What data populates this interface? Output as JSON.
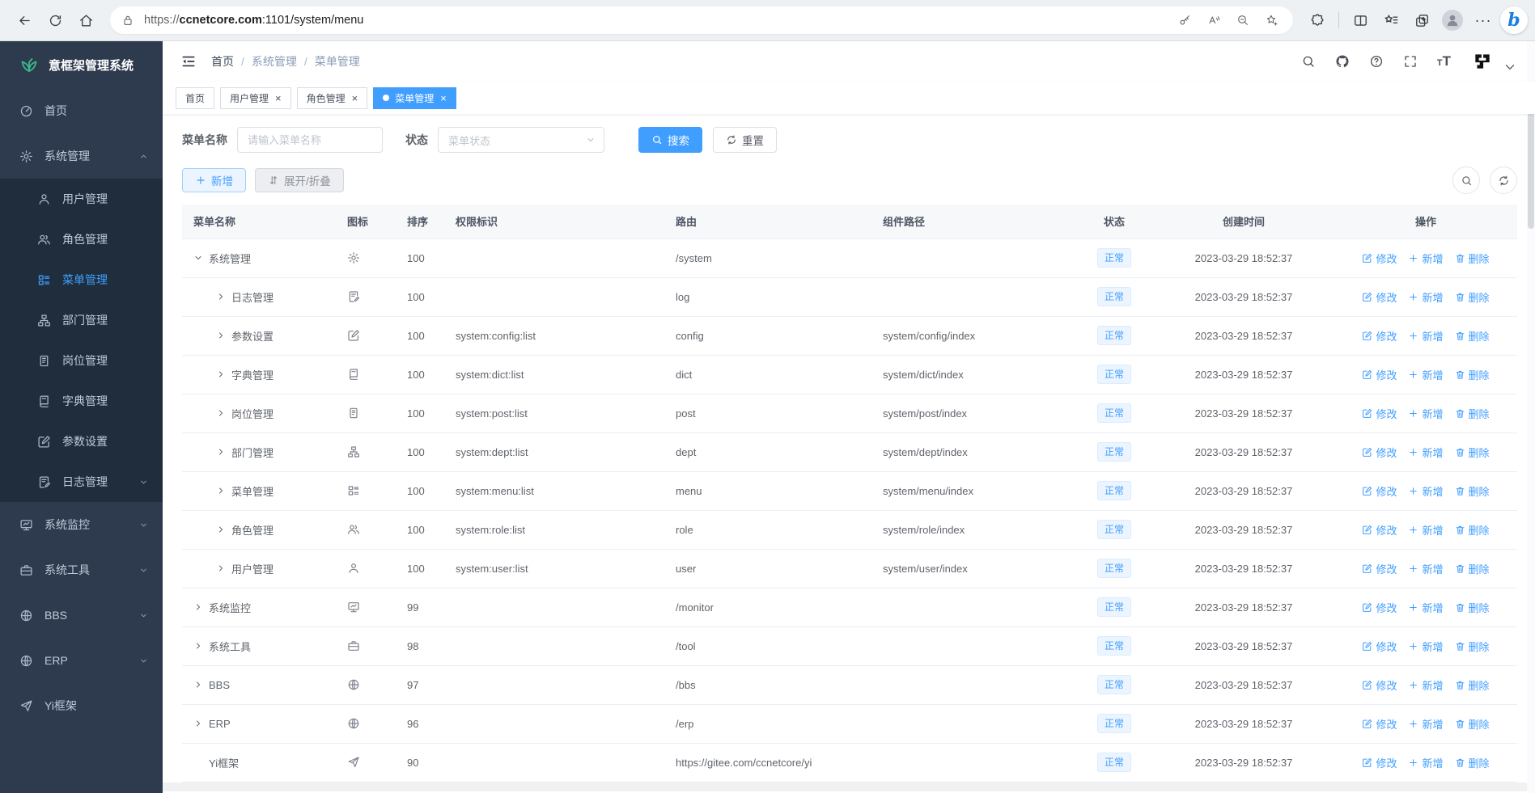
{
  "browser": {
    "url_scheme": "https://",
    "url_domain": "ccnetcore.com",
    "url_path": ":1101/system/menu",
    "more_label": "···"
  },
  "sidebar": {
    "logo_text": "意框架管理系统",
    "items": [
      {
        "label": "首页",
        "icon": "dashboard"
      },
      {
        "label": "系统管理",
        "icon": "gear",
        "expanded": true,
        "children": [
          {
            "label": "用户管理",
            "icon": "user"
          },
          {
            "label": "角色管理",
            "icon": "users"
          },
          {
            "label": "菜单管理",
            "icon": "menu",
            "active": true
          },
          {
            "label": "部门管理",
            "icon": "tree"
          },
          {
            "label": "岗位管理",
            "icon": "badge"
          },
          {
            "label": "字典管理",
            "icon": "book"
          },
          {
            "label": "参数设置",
            "icon": "edit"
          },
          {
            "label": "日志管理",
            "icon": "log",
            "arrow": true
          }
        ]
      },
      {
        "label": "系统监控",
        "icon": "monitor",
        "arrow": true
      },
      {
        "label": "系统工具",
        "icon": "toolbox",
        "arrow": true
      },
      {
        "label": "BBS",
        "icon": "globe",
        "arrow": true
      },
      {
        "label": "ERP",
        "icon": "globe",
        "arrow": true
      },
      {
        "label": "Yi框架",
        "icon": "plane"
      }
    ]
  },
  "navbar": {
    "breadcrumb": [
      "首页",
      "系统管理",
      "菜单管理"
    ],
    "separator": "/"
  },
  "tabs": [
    {
      "label": "首页",
      "closable": false,
      "active": false
    },
    {
      "label": "用户管理",
      "closable": true,
      "active": false
    },
    {
      "label": "角色管理",
      "closable": true,
      "active": false
    },
    {
      "label": "菜单管理",
      "closable": true,
      "active": true
    }
  ],
  "filter": {
    "name_label": "菜单名称",
    "name_placeholder": "请输入菜单名称",
    "status_label": "状态",
    "status_placeholder": "菜单状态",
    "search_label": "搜索",
    "reset_label": "重置"
  },
  "toolbar": {
    "add_label": "新增",
    "toggle_label": "展开/折叠"
  },
  "table": {
    "columns": [
      "菜单名称",
      "图标",
      "排序",
      "权限标识",
      "路由",
      "组件路径",
      "状态",
      "创建时间",
      "操作"
    ],
    "actions": {
      "edit": "修改",
      "add": "新增",
      "delete": "删除"
    },
    "rows": [
      {
        "name": "系统管理",
        "icon": "gear",
        "sort": "100",
        "perms": "",
        "route": "/system",
        "component": "",
        "status": "正常",
        "created": "2023-03-29 18:52:37",
        "level": 0,
        "expand": "open"
      },
      {
        "name": "日志管理",
        "icon": "log",
        "sort": "100",
        "perms": "",
        "route": "log",
        "component": "",
        "status": "正常",
        "created": "2023-03-29 18:52:37",
        "level": 1,
        "expand": "closed"
      },
      {
        "name": "参数设置",
        "icon": "edit",
        "sort": "100",
        "perms": "system:config:list",
        "route": "config",
        "component": "system/config/index",
        "status": "正常",
        "created": "2023-03-29 18:52:37",
        "level": 1,
        "expand": "closed"
      },
      {
        "name": "字典管理",
        "icon": "book",
        "sort": "100",
        "perms": "system:dict:list",
        "route": "dict",
        "component": "system/dict/index",
        "status": "正常",
        "created": "2023-03-29 18:52:37",
        "level": 1,
        "expand": "closed"
      },
      {
        "name": "岗位管理",
        "icon": "badge",
        "sort": "100",
        "perms": "system:post:list",
        "route": "post",
        "component": "system/post/index",
        "status": "正常",
        "created": "2023-03-29 18:52:37",
        "level": 1,
        "expand": "closed"
      },
      {
        "name": "部门管理",
        "icon": "tree",
        "sort": "100",
        "perms": "system:dept:list",
        "route": "dept",
        "component": "system/dept/index",
        "status": "正常",
        "created": "2023-03-29 18:52:37",
        "level": 1,
        "expand": "closed"
      },
      {
        "name": "菜单管理",
        "icon": "menu",
        "sort": "100",
        "perms": "system:menu:list",
        "route": "menu",
        "component": "system/menu/index",
        "status": "正常",
        "created": "2023-03-29 18:52:37",
        "level": 1,
        "expand": "closed"
      },
      {
        "name": "角色管理",
        "icon": "users",
        "sort": "100",
        "perms": "system:role:list",
        "route": "role",
        "component": "system/role/index",
        "status": "正常",
        "created": "2023-03-29 18:52:37",
        "level": 1,
        "expand": "closed"
      },
      {
        "name": "用户管理",
        "icon": "user",
        "sort": "100",
        "perms": "system:user:list",
        "route": "user",
        "component": "system/user/index",
        "status": "正常",
        "created": "2023-03-29 18:52:37",
        "level": 1,
        "expand": "closed"
      },
      {
        "name": "系统监控",
        "icon": "monitor",
        "sort": "99",
        "perms": "",
        "route": "/monitor",
        "component": "",
        "status": "正常",
        "created": "2023-03-29 18:52:37",
        "level": 0,
        "expand": "closed"
      },
      {
        "name": "系统工具",
        "icon": "toolbox",
        "sort": "98",
        "perms": "",
        "route": "/tool",
        "component": "",
        "status": "正常",
        "created": "2023-03-29 18:52:37",
        "level": 0,
        "expand": "closed"
      },
      {
        "name": "BBS",
        "icon": "globe",
        "sort": "97",
        "perms": "",
        "route": "/bbs",
        "component": "",
        "status": "正常",
        "created": "2023-03-29 18:52:37",
        "level": 0,
        "expand": "closed"
      },
      {
        "name": "ERP",
        "icon": "globe",
        "sort": "96",
        "perms": "",
        "route": "/erp",
        "component": "",
        "status": "正常",
        "created": "2023-03-29 18:52:37",
        "level": 0,
        "expand": "closed"
      },
      {
        "name": "Yi框架",
        "icon": "plane",
        "sort": "90",
        "perms": "",
        "route": "https://gitee.com/ccnetcore/yi",
        "component": "",
        "status": "正常",
        "created": "2023-03-29 18:52:37",
        "level": 0,
        "expand": "none"
      }
    ]
  }
}
